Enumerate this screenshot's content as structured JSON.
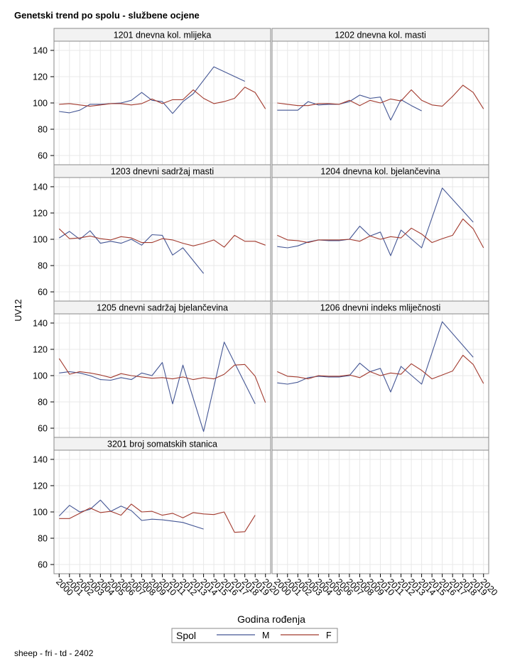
{
  "title": "Genetski trend po spolu - službene ocjene",
  "footnote": "sheep - fri - td - 2402",
  "colors": {
    "M": "#445694",
    "F": "#a23a2e",
    "grid": "#e8e8e8",
    "frame": "#8a8a8a",
    "header_bg": "#f2f2f2"
  },
  "chart_data": {
    "type": "line",
    "ylabel": "UV12",
    "xlabel": "Godina rođenja",
    "ylim": [
      53,
      147
    ],
    "yticks": [
      60,
      80,
      100,
      120,
      140
    ],
    "xlim": [
      1999.5,
      2020.5
    ],
    "x_ticks": [
      "2000",
      "2001",
      "2002",
      "2003",
      "2004",
      "2005",
      "2006",
      "2007",
      "2008",
      "2009",
      "2010",
      "2011",
      "2012",
      "2013",
      "2014",
      "2015",
      "2016",
      "2017",
      "2018",
      "2019",
      "2020"
    ],
    "legend": {
      "title": "Spol",
      "entries": [
        {
          "name": "M"
        },
        {
          "name": "F"
        }
      ],
      "position": "bottom"
    },
    "panels": [
      {
        "title": "1201 dnevna kol. mlijeka",
        "series": [
          {
            "name": "M",
            "x": [
              2000,
              2001,
              2002,
              2003,
              2004,
              2005,
              2006,
              2007,
              2008,
              2009,
              2010,
              2011,
              2012,
              2013,
              2015,
              2018
            ],
            "values": [
              93.5,
              92.5,
              94.5,
              99,
              99,
              99.5,
              100,
              102,
              108,
              102,
              101,
              92,
              101,
              107,
              127.5,
              116.5
            ]
          },
          {
            "name": "F",
            "x": [
              2000,
              2001,
              2002,
              2003,
              2004,
              2005,
              2006,
              2007,
              2008,
              2009,
              2010,
              2011,
              2012,
              2013,
              2014,
              2015,
              2016,
              2017,
              2018,
              2019,
              2020
            ],
            "values": [
              99,
              99.5,
              98.5,
              97.5,
              98.5,
              99.5,
              99.5,
              98.5,
              99.5,
              103,
              99.5,
              102.5,
              102.5,
              110,
              103.5,
              99.5,
              101,
              103.5,
              112,
              108,
              95.5
            ]
          }
        ]
      },
      {
        "title": "1202 dnevna kol. masti",
        "series": [
          {
            "name": "M",
            "x": [
              2000,
              2001,
              2002,
              2003,
              2004,
              2005,
              2006,
              2007,
              2008,
              2009,
              2010,
              2011,
              2012,
              2013,
              2014
            ],
            "values": [
              94.5,
              94.5,
              94.5,
              101,
              98.5,
              99,
              99,
              101,
              106,
              103.5,
              104.5,
              87,
              102.5,
              98,
              94
            ]
          },
          {
            "name": "F",
            "x": [
              2000,
              2001,
              2002,
              2003,
              2004,
              2005,
              2006,
              2007,
              2008,
              2009,
              2010,
              2011,
              2012,
              2013,
              2014,
              2015,
              2016,
              2017,
              2018,
              2019,
              2020
            ],
            "values": [
              100,
              99,
              98,
              98,
              99.5,
              99.5,
              99,
              102,
              98,
              102,
              100,
              103,
              101.5,
              110,
              102,
              98.5,
              97.5,
              105,
              113.5,
              108,
              95.5
            ]
          }
        ]
      },
      {
        "title": "1203 dnevni sadržaj masti",
        "series": [
          {
            "name": "M",
            "x": [
              2000,
              2001,
              2002,
              2003,
              2004,
              2005,
              2006,
              2007,
              2008,
              2009,
              2010,
              2011,
              2012,
              2014
            ],
            "values": [
              101,
              106,
              100,
              106.5,
              97,
              98.5,
              97,
              100,
              95.5,
              103.5,
              103,
              88,
              93.5,
              74
            ]
          },
          {
            "name": "F",
            "x": [
              2000,
              2001,
              2002,
              2003,
              2004,
              2005,
              2006,
              2007,
              2008,
              2009,
              2010,
              2011,
              2012,
              2013,
              2014,
              2015,
              2016,
              2017,
              2018,
              2019,
              2020
            ],
            "values": [
              108,
              100.5,
              101,
              102.5,
              100.5,
              99.5,
              102,
              101,
              97.5,
              97.5,
              100.5,
              99.5,
              97,
              95,
              97,
              99.5,
              94,
              103,
              98.5,
              98.5,
              95.5
            ]
          }
        ]
      },
      {
        "title": "1204 dnevna kol. bjelančevina",
        "series": [
          {
            "name": "M",
            "x": [
              2000,
              2001,
              2002,
              2003,
              2004,
              2005,
              2006,
              2007,
              2008,
              2009,
              2010,
              2011,
              2012,
              2014,
              2016,
              2019
            ],
            "values": [
              94.5,
              93.5,
              95,
              98,
              99.5,
              99,
              99,
              100,
              110,
              102.5,
              105.5,
              87.5,
              107,
              93.5,
              139,
              113
            ]
          },
          {
            "name": "F",
            "x": [
              2000,
              2001,
              2002,
              2003,
              2004,
              2005,
              2006,
              2007,
              2008,
              2009,
              2010,
              2011,
              2012,
              2013,
              2014,
              2015,
              2016,
              2017,
              2018,
              2019,
              2020
            ],
            "values": [
              103,
              99.5,
              99,
              97.5,
              99.5,
              99.5,
              99.5,
              100,
              98.5,
              102.5,
              100,
              102,
              101,
              108.5,
              104,
              97.5,
              100.5,
              103,
              115.5,
              108,
              93.5
            ]
          }
        ]
      },
      {
        "title": "1205 dnevni sadržaj bjelančevina",
        "series": [
          {
            "name": "M",
            "x": [
              2000,
              2001,
              2002,
              2003,
              2004,
              2005,
              2006,
              2007,
              2008,
              2009,
              2010,
              2011,
              2012,
              2014,
              2016,
              2019
            ],
            "values": [
              102,
              103,
              102,
              100,
              97,
              96.5,
              98.5,
              97,
              102,
              100,
              110,
              78.5,
              108,
              57.5,
              125.5,
              78.5
            ]
          },
          {
            "name": "F",
            "x": [
              2000,
              2001,
              2002,
              2003,
              2004,
              2005,
              2006,
              2007,
              2008,
              2009,
              2010,
              2011,
              2012,
              2013,
              2014,
              2015,
              2016,
              2017,
              2018,
              2019,
              2020
            ],
            "values": [
              113,
              101,
              103,
              102,
              100.5,
              98.5,
              101.5,
              100,
              99,
              98,
              98.5,
              97.5,
              99,
              97,
              98.5,
              97.5,
              101,
              108,
              108.5,
              99.5,
              79.5
            ]
          }
        ]
      },
      {
        "title": "1206 dnevni indeks mliječnosti",
        "series": [
          {
            "name": "M",
            "x": [
              2000,
              2001,
              2002,
              2003,
              2004,
              2005,
              2006,
              2007,
              2008,
              2009,
              2010,
              2011,
              2012,
              2014,
              2016,
              2019
            ],
            "values": [
              94.5,
              93.5,
              95,
              98.5,
              99.5,
              99,
              99,
              100,
              109.5,
              103,
              105.5,
              87.5,
              107,
              93.5,
              141,
              114
            ]
          },
          {
            "name": "F",
            "x": [
              2000,
              2001,
              2002,
              2003,
              2004,
              2005,
              2006,
              2007,
              2008,
              2009,
              2010,
              2011,
              2012,
              2013,
              2014,
              2015,
              2016,
              2017,
              2018,
              2019,
              2020
            ],
            "values": [
              103,
              99.5,
              99,
              97.5,
              100,
              99.5,
              99.5,
              100.5,
              98.5,
              103,
              100,
              102,
              101,
              109,
              104,
              97.5,
              100.5,
              103.5,
              115.5,
              108.5,
              94
            ]
          }
        ]
      },
      {
        "title": "3201 broj somatskih stanica",
        "series": [
          {
            "name": "M",
            "x": [
              2000,
              2001,
              2002,
              2003,
              2004,
              2005,
              2006,
              2007,
              2008,
              2009,
              2010,
              2012,
              2014
            ],
            "values": [
              97,
              105,
              100,
              102,
              109,
              100.5,
              104.5,
              101,
              93.5,
              94.5,
              94,
              92,
              87
            ]
          },
          {
            "name": "F",
            "x": [
              2000,
              2001,
              2002,
              2003,
              2004,
              2005,
              2006,
              2007,
              2008,
              2009,
              2010,
              2011,
              2012,
              2013,
              2014,
              2015,
              2016,
              2017,
              2018,
              2019
            ],
            "values": [
              95,
              95,
              99,
              103,
              99.5,
              100.5,
              97.5,
              106,
              100,
              100.5,
              97.5,
              99,
              95.5,
              99.5,
              98.5,
              98,
              100,
              84.5,
              85,
              97.5
            ]
          }
        ]
      }
    ]
  }
}
